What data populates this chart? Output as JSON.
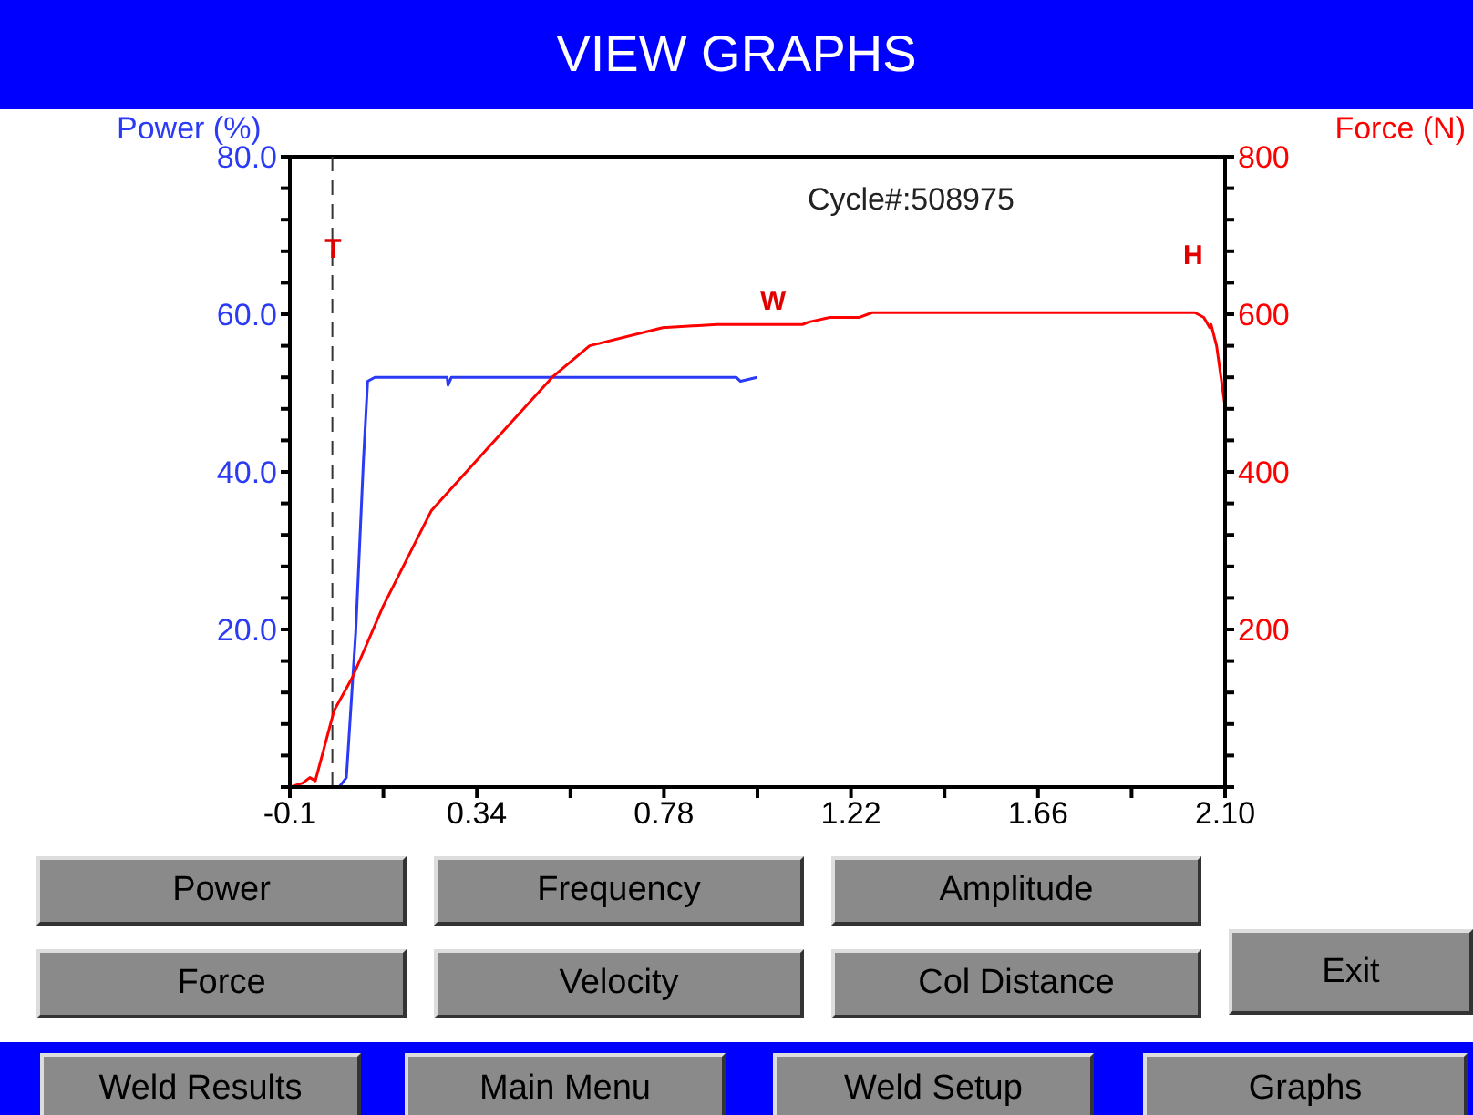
{
  "chart_data": {
    "type": "line",
    "title": "VIEW GRAPHS",
    "ylabel": "Power (%)",
    "y2label": "Force (N)",
    "xlim": [
      -0.1,
      2.1
    ],
    "xticks": [
      -0.1,
      {
        "value": 0.12,
        "label": null
      },
      0.34,
      {
        "value": 0.56,
        "label": null
      },
      0.78,
      {
        "value": 1.0,
        "label": null
      },
      1.22,
      {
        "value": 1.44,
        "label": null
      },
      1.66,
      {
        "value": 1.88,
        "label": null
      },
      {
        "value": 2.1,
        "label": "2.10"
      }
    ],
    "ylim": [
      0,
      80
    ],
    "yticks": [
      {
        "value": 0,
        "label": null
      },
      {
        "value": 4,
        "label": null
      },
      {
        "value": 8,
        "label": null
      },
      {
        "value": 12,
        "label": null
      },
      {
        "value": 16,
        "label": null
      },
      {
        "value": 20,
        "label": "20.0"
      },
      {
        "value": 24,
        "label": null
      },
      {
        "value": 28,
        "label": null
      },
      {
        "value": 32,
        "label": null
      },
      {
        "value": 36,
        "label": null
      },
      {
        "value": 40,
        "label": "40.0"
      },
      {
        "value": 44,
        "label": null
      },
      {
        "value": 48,
        "label": null
      },
      {
        "value": 52,
        "label": null
      },
      {
        "value": 56,
        "label": null
      },
      {
        "value": 60,
        "label": "60.0"
      },
      {
        "value": 64,
        "label": null
      },
      {
        "value": 68,
        "label": null
      },
      {
        "value": 72,
        "label": null
      },
      {
        "value": 76,
        "label": null
      },
      {
        "value": 80,
        "label": "80.0"
      }
    ],
    "y2lim": [
      0,
      800
    ],
    "y2ticks": [
      {
        "value": 0,
        "label": null
      },
      {
        "value": 40,
        "label": null
      },
      {
        "value": 80,
        "label": null
      },
      {
        "value": 120,
        "label": null
      },
      {
        "value": 160,
        "label": null
      },
      200,
      {
        "value": 240,
        "label": null
      },
      {
        "value": 280,
        "label": null
      },
      {
        "value": 320,
        "label": null
      },
      {
        "value": 360,
        "label": null
      },
      400,
      {
        "value": 440,
        "label": null
      },
      {
        "value": 480,
        "label": null
      },
      {
        "value": 520,
        "label": null
      },
      {
        "value": 560,
        "label": null
      },
      600,
      {
        "value": 640,
        "label": null
      },
      {
        "value": 680,
        "label": null
      },
      {
        "value": 720,
        "label": null
      },
      {
        "value": 760,
        "label": null
      },
      800
    ],
    "series": [
      {
        "color": "#2b3bf5",
        "x": [
          -0.1,
          0.016,
          0.033,
          0.055,
          0.073,
          0.083,
          0.1,
          0.27,
          0.272,
          0.28,
          0.5,
          0.7,
          0.9,
          0.95,
          0.96,
          0.999
        ],
        "values": [
          0,
          0,
          1.2,
          19.7,
          41.4,
          51.5,
          52,
          52,
          51,
          52,
          52,
          52,
          52,
          52,
          51.5,
          52
        ]
      },
      {
        "color": "#ff0000",
        "axis": "y2",
        "x": [
          -0.1,
          -0.07,
          -0.053,
          -0.04,
          0.004,
          0.047,
          0.119,
          0.233,
          0.362,
          0.519,
          0.605,
          0.777,
          0.905,
          1.106,
          1.12,
          1.17,
          1.24,
          1.27,
          2.029,
          2.05,
          2.064,
          2.067,
          2.08,
          2.1
        ],
        "values": [
          0,
          5,
          12,
          8,
          97,
          139,
          229,
          351,
          428,
          521,
          560,
          583,
          587,
          587,
          590,
          596,
          596,
          602,
          602,
          596,
          583,
          587,
          560,
          483
        ]
      }
    ],
    "ref_lines": [
      {
        "axis": "x",
        "value": 0,
        "label": "T",
        "color": "#333333",
        "line_style": "dashed"
      }
    ],
    "annotations": [
      "Cycle#:508975",
      "W",
      "H",
      "Power",
      "Frequency",
      "Amplitude",
      "Force",
      "Velocity",
      "Col Distance",
      "Exit",
      "Weld Results",
      "Main Menu",
      "Weld Setup",
      "Graphs"
    ]
  }
}
